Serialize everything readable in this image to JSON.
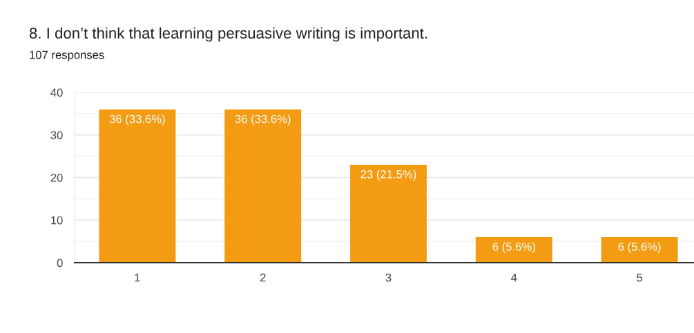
{
  "chart_data": {
    "type": "bar",
    "title": "8. I don’t think that learning persuasive writing is important.",
    "subtitle": "107 responses",
    "categories": [
      "1",
      "2",
      "3",
      "4",
      "5"
    ],
    "values": [
      36,
      36,
      23,
      6,
      6
    ],
    "color": "#f39c13",
    "value_labels": [
      "36 (33.6%)",
      "36 (33.6%)",
      "23 (21.5%)",
      "6 (5.6%)",
      "6 (5.6%)"
    ],
    "ylim": [
      0,
      40
    ],
    "yticks": [
      0,
      {
        "value": 5,
        "label": null
      },
      10,
      {
        "value": 15,
        "label": null
      },
      20,
      {
        "value": 25,
        "label": null
      },
      30,
      {
        "value": 35,
        "label": null
      },
      40
    ],
    "grid": "y",
    "legend": false
  }
}
